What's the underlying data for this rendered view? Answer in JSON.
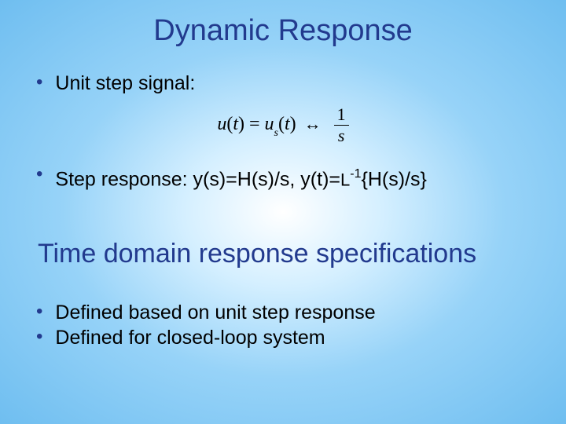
{
  "slide": {
    "background_gradient": [
      "#ffffff",
      "#d4efff",
      "#97d3f8",
      "#6fbef0"
    ],
    "title_color": "#223a8e",
    "text_color": "#000000",
    "title_fontsize": 38,
    "body_fontsize": 25,
    "subtitle_fontsize": 34,
    "title": "Dynamic Response",
    "bullets_top": {
      "b1": "Unit step signal:",
      "b2_prefix": "Step response: y(s)=H(s)/s, y(t)=",
      "b2_L": "L",
      "b2_sup": "-1",
      "b2_suffix": "{H(s)/s}"
    },
    "formula": {
      "u": "u",
      "t1": "(",
      "tvar": "t",
      "t2": ") = ",
      "us": "u",
      "sub_s": "s",
      "t3": "(",
      "tvar2": "t",
      "t4": ") ",
      "arrow": "↔",
      "frac_num": "1",
      "frac_den": "s"
    },
    "subtitle": "Time domain response specifications",
    "bullets_bottom": {
      "b1": "Defined based on unit step response",
      "b2": "Defined for closed-loop system"
    }
  }
}
